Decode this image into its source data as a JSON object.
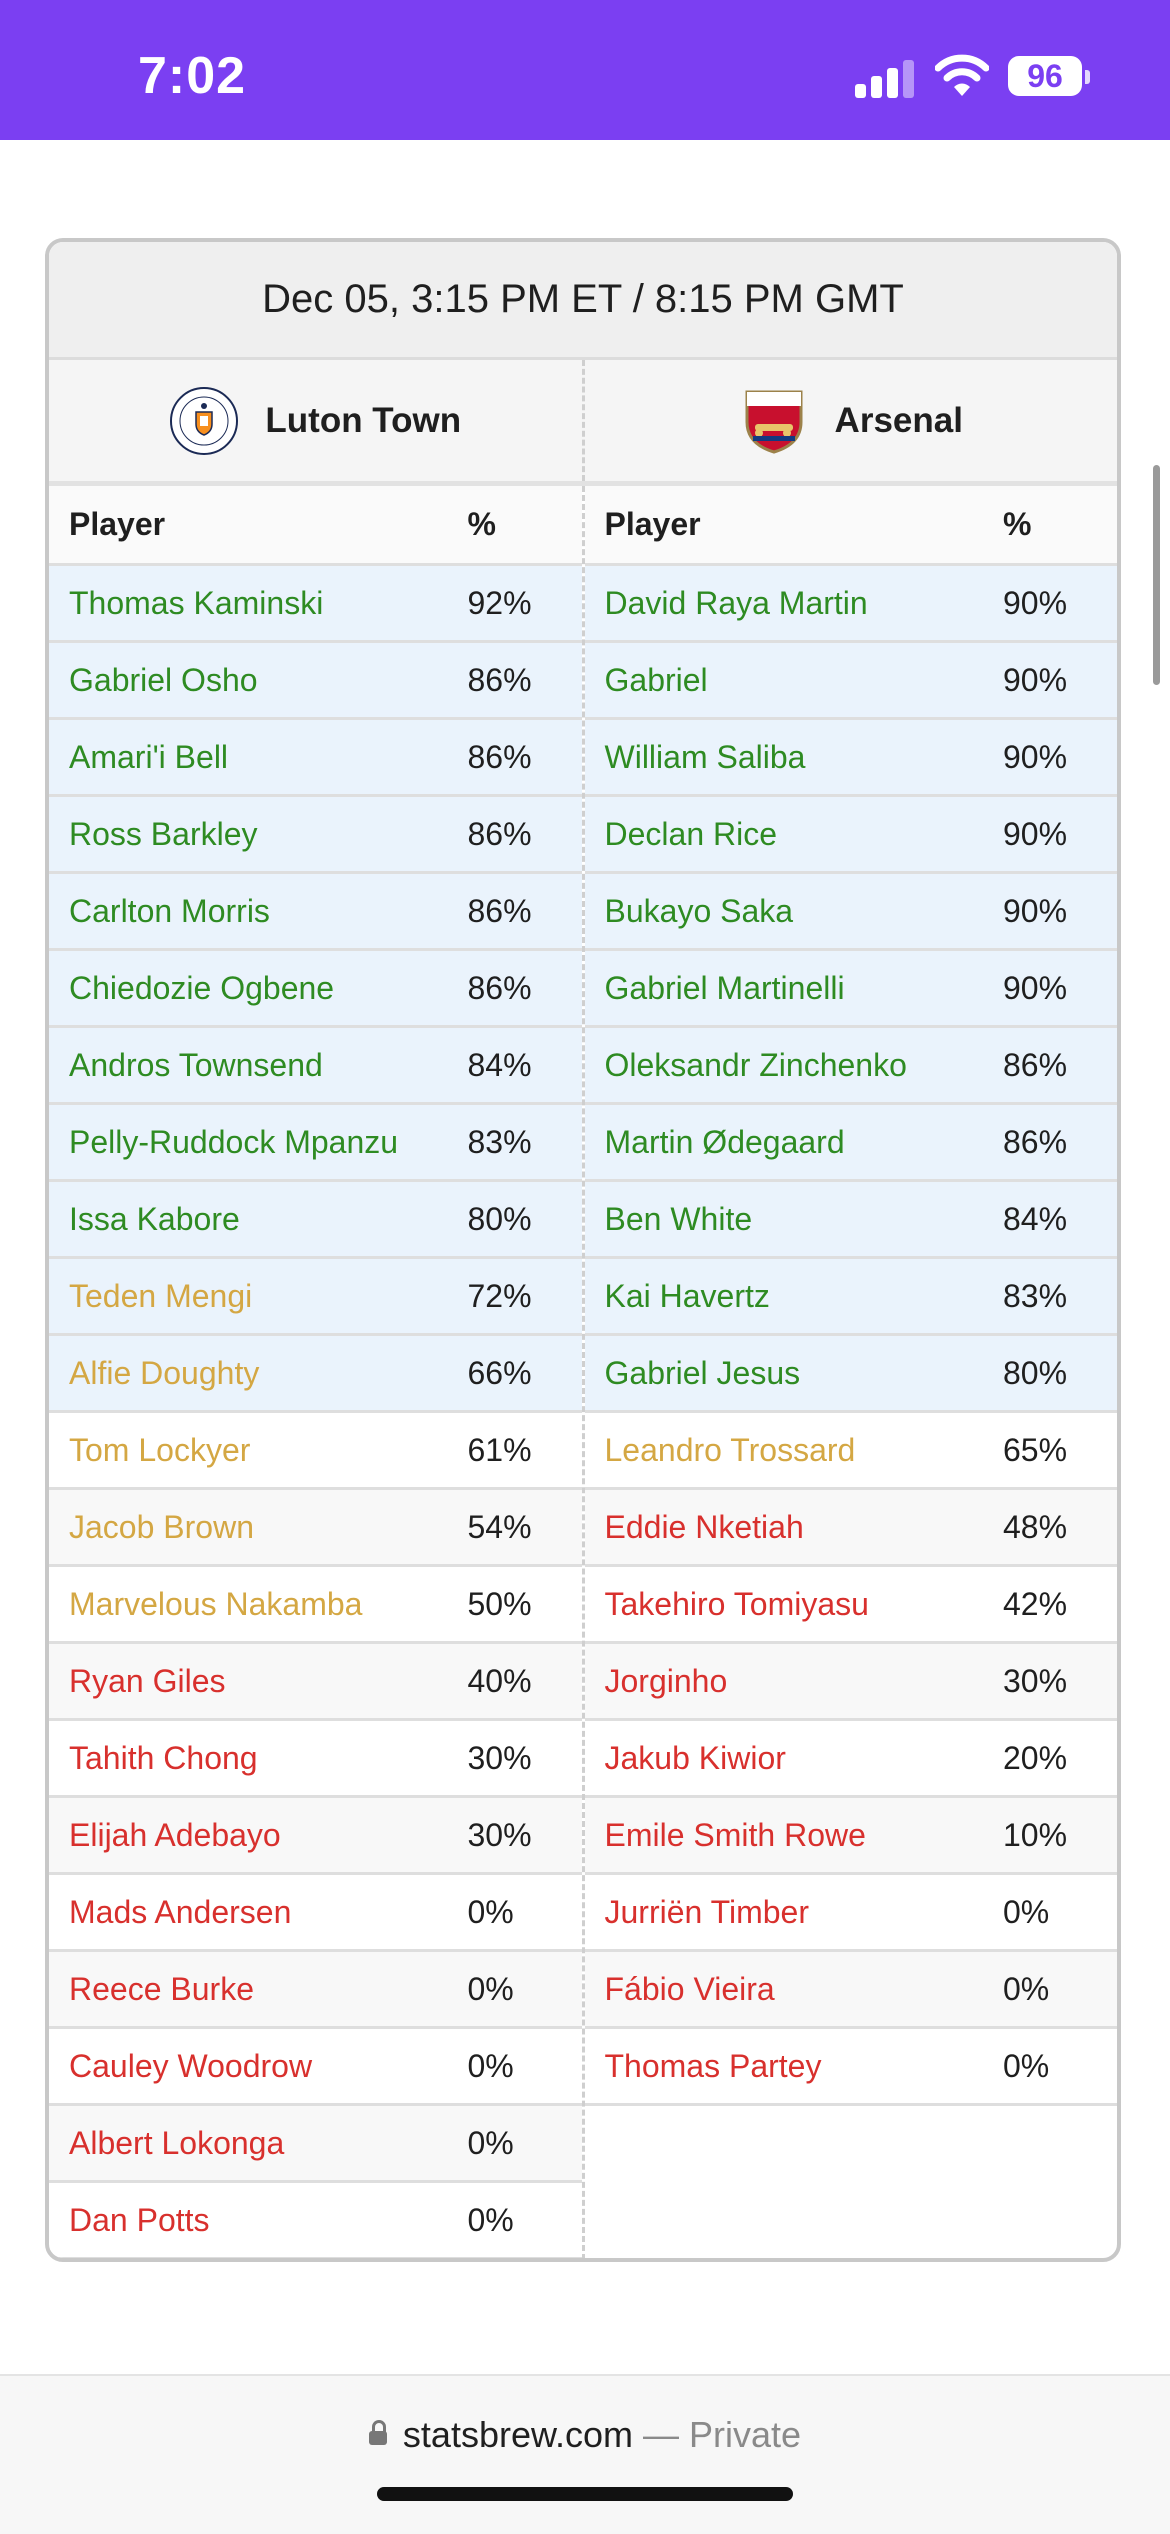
{
  "status_bar": {
    "time": "7:02",
    "battery": "96"
  },
  "match": {
    "datetime": "Dec 05, 3:15 PM ET / 8:15 PM GMT",
    "home": {
      "name": "Luton Town",
      "crest_text": "LUTON TOWN FOOTBALL CLUB",
      "players": [
        {
          "name": "Thomas Kaminski",
          "pct": "92%",
          "tier": "green",
          "hl": true
        },
        {
          "name": "Gabriel Osho",
          "pct": "86%",
          "tier": "green",
          "hl": true
        },
        {
          "name": "Amari'i Bell",
          "pct": "86%",
          "tier": "green",
          "hl": true
        },
        {
          "name": "Ross Barkley",
          "pct": "86%",
          "tier": "green",
          "hl": true
        },
        {
          "name": "Carlton Morris",
          "pct": "86%",
          "tier": "green",
          "hl": true
        },
        {
          "name": "Chiedozie Ogbene",
          "pct": "86%",
          "tier": "green",
          "hl": true
        },
        {
          "name": "Andros Townsend",
          "pct": "84%",
          "tier": "green",
          "hl": true
        },
        {
          "name": "Pelly-Ruddock Mpanzu",
          "pct": "83%",
          "tier": "green",
          "hl": true
        },
        {
          "name": "Issa Kabore",
          "pct": "80%",
          "tier": "green",
          "hl": true
        },
        {
          "name": "Teden Mengi",
          "pct": "72%",
          "tier": "amber",
          "hl": true
        },
        {
          "name": "Alfie Doughty",
          "pct": "66%",
          "tier": "amber",
          "hl": true
        },
        {
          "name": "Tom Lockyer",
          "pct": "61%",
          "tier": "amber",
          "hl": false
        },
        {
          "name": "Jacob Brown",
          "pct": "54%",
          "tier": "amber",
          "hl": false
        },
        {
          "name": "Marvelous Nakamba",
          "pct": "50%",
          "tier": "amber",
          "hl": false
        },
        {
          "name": "Ryan Giles",
          "pct": "40%",
          "tier": "red",
          "hl": false
        },
        {
          "name": "Tahith Chong",
          "pct": "30%",
          "tier": "red",
          "hl": false
        },
        {
          "name": "Elijah Adebayo",
          "pct": "30%",
          "tier": "red",
          "hl": false
        },
        {
          "name": "Mads Andersen",
          "pct": "0%",
          "tier": "red",
          "hl": false
        },
        {
          "name": "Reece Burke",
          "pct": "0%",
          "tier": "red",
          "hl": false
        },
        {
          "name": "Cauley Woodrow",
          "pct": "0%",
          "tier": "red",
          "hl": false
        },
        {
          "name": "Albert Lokonga",
          "pct": "0%",
          "tier": "red",
          "hl": false
        },
        {
          "name": "Dan Potts",
          "pct": "0%",
          "tier": "red",
          "hl": false
        }
      ]
    },
    "away": {
      "name": "Arsenal",
      "crest_text": "Arsenal",
      "players": [
        {
          "name": "David Raya Martin",
          "pct": "90%",
          "tier": "green",
          "hl": true
        },
        {
          "name": "Gabriel",
          "pct": "90%",
          "tier": "green",
          "hl": true
        },
        {
          "name": "William Saliba",
          "pct": "90%",
          "tier": "green",
          "hl": true
        },
        {
          "name": "Declan Rice",
          "pct": "90%",
          "tier": "green",
          "hl": true
        },
        {
          "name": "Bukayo Saka",
          "pct": "90%",
          "tier": "green",
          "hl": true
        },
        {
          "name": "Gabriel Martinelli",
          "pct": "90%",
          "tier": "green",
          "hl": true
        },
        {
          "name": "Oleksandr Zinchenko",
          "pct": "86%",
          "tier": "green",
          "hl": true
        },
        {
          "name": "Martin Ødegaard",
          "pct": "86%",
          "tier": "green",
          "hl": true
        },
        {
          "name": "Ben White",
          "pct": "84%",
          "tier": "green",
          "hl": true
        },
        {
          "name": "Kai Havertz",
          "pct": "83%",
          "tier": "green",
          "hl": true
        },
        {
          "name": "Gabriel Jesus",
          "pct": "80%",
          "tier": "green",
          "hl": true
        },
        {
          "name": "Leandro Trossard",
          "pct": "65%",
          "tier": "amber",
          "hl": false
        },
        {
          "name": "Eddie Nketiah",
          "pct": "48%",
          "tier": "red",
          "hl": false
        },
        {
          "name": "Takehiro Tomiyasu",
          "pct": "42%",
          "tier": "red",
          "hl": false
        },
        {
          "name": "Jorginho",
          "pct": "30%",
          "tier": "red",
          "hl": false
        },
        {
          "name": "Jakub Kiwior",
          "pct": "20%",
          "tier": "red",
          "hl": false
        },
        {
          "name": "Emile Smith Rowe",
          "pct": "10%",
          "tier": "red",
          "hl": false
        },
        {
          "name": "Jurriën Timber",
          "pct": "0%",
          "tier": "red",
          "hl": false
        },
        {
          "name": "Fábio Vieira",
          "pct": "0%",
          "tier": "red",
          "hl": false
        },
        {
          "name": "Thomas Partey",
          "pct": "0%",
          "tier": "red",
          "hl": false
        }
      ]
    }
  },
  "table_headers": {
    "player": "Player",
    "pct": "%"
  },
  "browser": {
    "domain": "statsbrew.com",
    "mode": " — Private"
  },
  "colors": {
    "status_bar": "#7b3ff2",
    "green": "#2e8b22",
    "amber": "#d4a743",
    "red": "#d8302d",
    "highlight": "#eaf3fc"
  }
}
